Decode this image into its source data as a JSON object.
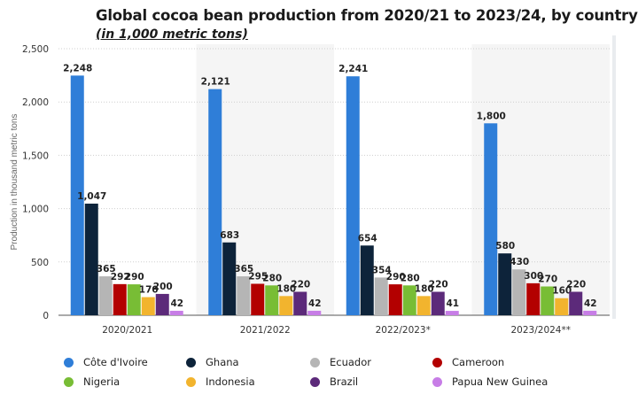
{
  "page": {
    "title": "Global cocoa bean production from 2020/21 to 2023/24, by country",
    "subtitle": "(in 1,000 metric tons)"
  },
  "colors": {
    "Côte d'Ivoire": "#2f7ed8",
    "Ghana": "#0d233a",
    "Ecuador": "#b5b5b5",
    "Cameroon": "#b30000",
    "Nigeria": "#78bd35",
    "Indonesia": "#f2b42e",
    "Brazil": "#5c2a7a",
    "Papua New Guinea": "#c77de6"
  },
  "chart_data": {
    "type": "bar",
    "title": "Global cocoa bean production from 2020/21 to 2023/24, by country",
    "subtitle": "(in 1,000 metric tons)",
    "xlabel": "",
    "ylabel": "Production in thousand metric tons",
    "ylim": [
      0,
      2500
    ],
    "yticks": [
      0,
      500,
      1000,
      1500,
      2000,
      2500
    ],
    "ytick_labels": [
      "0",
      "500",
      "1,000",
      "1,500",
      "2,000",
      "2,500"
    ],
    "grid": true,
    "legend_position": "bottom",
    "categories": [
      "2020/2021",
      "2021/2022",
      "2022/2023*",
      "2023/2024**"
    ],
    "series": [
      {
        "name": "Côte d'Ivoire",
        "values": [
          2248,
          2121,
          2241,
          1800
        ],
        "labels": [
          "2,248",
          "2,121",
          "2,241",
          "1,800"
        ]
      },
      {
        "name": "Ghana",
        "values": [
          1047,
          683,
          654,
          580
        ],
        "labels": [
          "1,047",
          "683",
          "654",
          "580"
        ]
      },
      {
        "name": "Ecuador",
        "values": [
          365,
          365,
          354,
          430
        ],
        "labels": [
          "365",
          "365",
          "354",
          "430"
        ]
      },
      {
        "name": "Cameroon",
        "values": [
          292,
          295,
          290,
          300
        ],
        "labels": [
          "292",
          "295",
          "290",
          "300"
        ]
      },
      {
        "name": "Nigeria",
        "values": [
          290,
          280,
          280,
          270
        ],
        "labels": [
          "290",
          "280",
          "280",
          "270"
        ]
      },
      {
        "name": "Indonesia",
        "values": [
          170,
          180,
          180,
          160
        ],
        "labels": [
          "170",
          "180",
          "180",
          "160"
        ]
      },
      {
        "name": "Brazil",
        "values": [
          200,
          220,
          220,
          220
        ],
        "labels": [
          "200",
          "220",
          "220",
          "220"
        ]
      },
      {
        "name": "Papua New Guinea",
        "values": [
          42,
          42,
          41,
          42
        ],
        "labels": [
          "42",
          "42",
          "41",
          "42"
        ]
      }
    ]
  }
}
